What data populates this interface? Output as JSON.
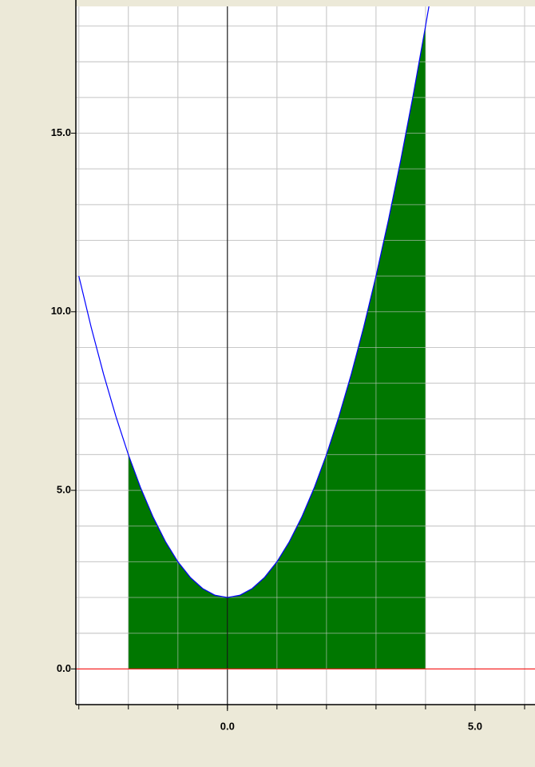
{
  "chart_data": {
    "type": "line",
    "xlim": [
      -3.06,
      6.21
    ],
    "ylim": [
      -1,
      18.55
    ],
    "xticks": [
      {
        "value": 0,
        "label": "0.0"
      },
      {
        "value": 5,
        "label": "5.0"
      }
    ],
    "yticks": [
      {
        "value": 0,
        "label": "0.0"
      },
      {
        "value": 5,
        "label": "5.0"
      },
      {
        "value": 10,
        "label": "10.0"
      },
      {
        "value": 15,
        "label": "15.0"
      }
    ],
    "xminor": [
      -3,
      -2,
      -1,
      0,
      1,
      2,
      3,
      4,
      5,
      6
    ],
    "yminor": [
      -1,
      0,
      1,
      2,
      3,
      4,
      5,
      6,
      7,
      8,
      9,
      10,
      11,
      12,
      13,
      14,
      15,
      16,
      17,
      18
    ],
    "grid": true,
    "series": [
      {
        "name": "curve",
        "color": "#0000ff",
        "x": [
          -3,
          -2.75,
          -2.5,
          -2.25,
          -2,
          -1.75,
          -1.5,
          -1.25,
          -1,
          -0.75,
          -0.5,
          -0.25,
          0,
          0.25,
          0.5,
          0.75,
          1,
          1.25,
          1.5,
          1.75,
          2,
          2.25,
          2.5,
          2.75,
          3,
          3.25,
          3.5,
          3.75,
          4,
          4.07
        ],
        "values": [
          11,
          9.5625,
          8.25,
          7.0625,
          6,
          5.0625,
          4.25,
          3.5625,
          3,
          2.5625,
          2.25,
          2.0625,
          2,
          2.0625,
          2.25,
          2.5625,
          3,
          3.5625,
          4.25,
          5.0625,
          6,
          7.0625,
          8.25,
          9.5625,
          11,
          12.5625,
          14.25,
          16.0625,
          18,
          18.5649
        ]
      },
      {
        "name": "area",
        "color": "#007700",
        "x": [
          -2,
          -1.75,
          -1.5,
          -1.25,
          -1,
          -0.75,
          -0.5,
          -0.25,
          0,
          0.25,
          0.5,
          0.75,
          1,
          1.25,
          1.5,
          1.75,
          2,
          2.25,
          2.5,
          2.75,
          3,
          3.25,
          3.5,
          3.75,
          4
        ],
        "values": [
          6,
          5.0625,
          4.25,
          3.5625,
          3,
          2.5625,
          2.25,
          2.0625,
          2,
          2.0625,
          2.25,
          2.5625,
          3,
          3.5625,
          4.25,
          5.0625,
          6,
          7.0625,
          8.25,
          9.5625,
          11,
          12.5625,
          14.25,
          16.0625,
          18
        ]
      }
    ]
  }
}
